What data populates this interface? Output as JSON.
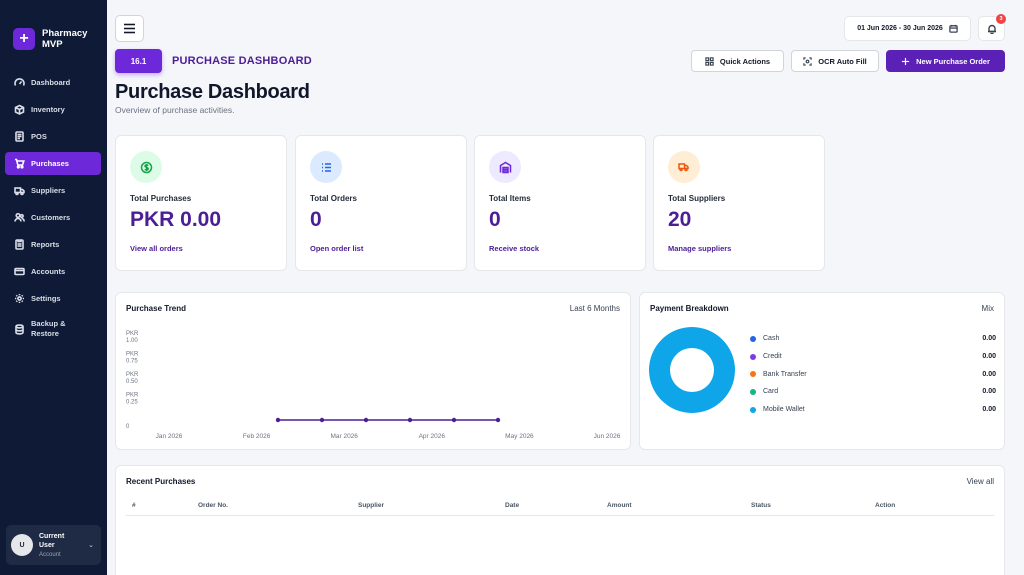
{
  "brand": {
    "logo": "+",
    "name": "Pharmacy MVP"
  },
  "sidebar": {
    "items": [
      {
        "label": "Dashboard",
        "icon": "dashboard-icon"
      },
      {
        "label": "Inventory",
        "icon": "box-icon"
      },
      {
        "label": "POS",
        "icon": "receipt-icon"
      },
      {
        "label": "Purchases",
        "icon": "cart-icon",
        "active": true
      },
      {
        "label": "Suppliers",
        "icon": "truck-icon"
      },
      {
        "label": "Customers",
        "icon": "users-icon"
      },
      {
        "label": "Reports",
        "icon": "report-icon"
      },
      {
        "label": "Accounts",
        "icon": "card-icon"
      },
      {
        "label": "Settings",
        "icon": "gear-icon"
      },
      {
        "label": "Backup & Restore",
        "icon": "database-icon"
      }
    ],
    "user": {
      "initial": "U",
      "name": "Current User",
      "role": "Account"
    }
  },
  "header": {
    "date_range": "01 Jun 2026 - 30 Jun 2026",
    "notification_count": "3",
    "version": "16.1",
    "section_title": "PURCHASE DASHBOARD",
    "actions": {
      "quick": "Quick Actions",
      "ocr": "OCR Auto Fill",
      "new_order": "New Purchase Order"
    }
  },
  "page": {
    "title": "Purchase Dashboard",
    "subtitle": "Overview of purchase activities."
  },
  "stats": [
    {
      "label": "Total Purchases",
      "value": "PKR 0.00",
      "link": "View all orders",
      "icon": "dollar-icon",
      "color": "#16a34a",
      "bg": "#dcfce7"
    },
    {
      "label": "Total Orders",
      "value": "0",
      "link": "Open order list",
      "icon": "list-icon",
      "color": "#2563eb",
      "bg": "#dbeafe"
    },
    {
      "label": "Total Items",
      "value": "0",
      "link": "Receive stock",
      "icon": "warehouse-icon",
      "color": "#6d28d9",
      "bg": "#ede9fe"
    },
    {
      "label": "Total Suppliers",
      "value": "20",
      "link": "Manage suppliers",
      "icon": "truck-icon",
      "color": "#ea580c",
      "bg": "#ffedd5"
    }
  ],
  "trend": {
    "title": "Purchase Trend",
    "period": "Last 6 Months",
    "line_color": "#4c1d95"
  },
  "chart_data": {
    "type": "line",
    "x": [
      "Jan 2026",
      "Feb 2026",
      "Mar 2026",
      "Apr 2026",
      "May 2026",
      "Jun 2026"
    ],
    "y_ticks": [
      {
        "line1": "PKR",
        "line2": "1.00",
        "value": 1.0
      },
      {
        "line1": "PKR",
        "line2": "0.75",
        "value": 0.75
      },
      {
        "line1": "PKR",
        "line2": "0.50",
        "value": 0.5
      },
      {
        "line1": "PKR",
        "line2": "0.25",
        "value": 0.25
      },
      {
        "line1": "",
        "line2": "0",
        "value": 0
      }
    ],
    "ylim": [
      0,
      1
    ],
    "series": [
      {
        "values": [
          0,
          0,
          0,
          0,
          0,
          0
        ]
      }
    ]
  },
  "payment": {
    "title": "Payment Breakdown",
    "meta": "Mix",
    "donut_color": "#0ea5e9",
    "rows": [
      {
        "label": "Cash",
        "value": "0.00",
        "color": "#2563eb"
      },
      {
        "label": "Credit",
        "value": "0.00",
        "color": "#7c3aed"
      },
      {
        "label": "Bank Transfer",
        "value": "0.00",
        "color": "#f97316"
      },
      {
        "label": "Card",
        "value": "0.00",
        "color": "#10b981"
      },
      {
        "label": "Mobile Wallet",
        "value": "0.00",
        "color": "#0ea5e9"
      }
    ]
  },
  "recent": {
    "title": "Recent Purchases",
    "view_all": "View all",
    "columns": [
      "#",
      "Order No.",
      "Supplier",
      "Date",
      "Amount",
      "Status",
      "Action"
    ]
  }
}
